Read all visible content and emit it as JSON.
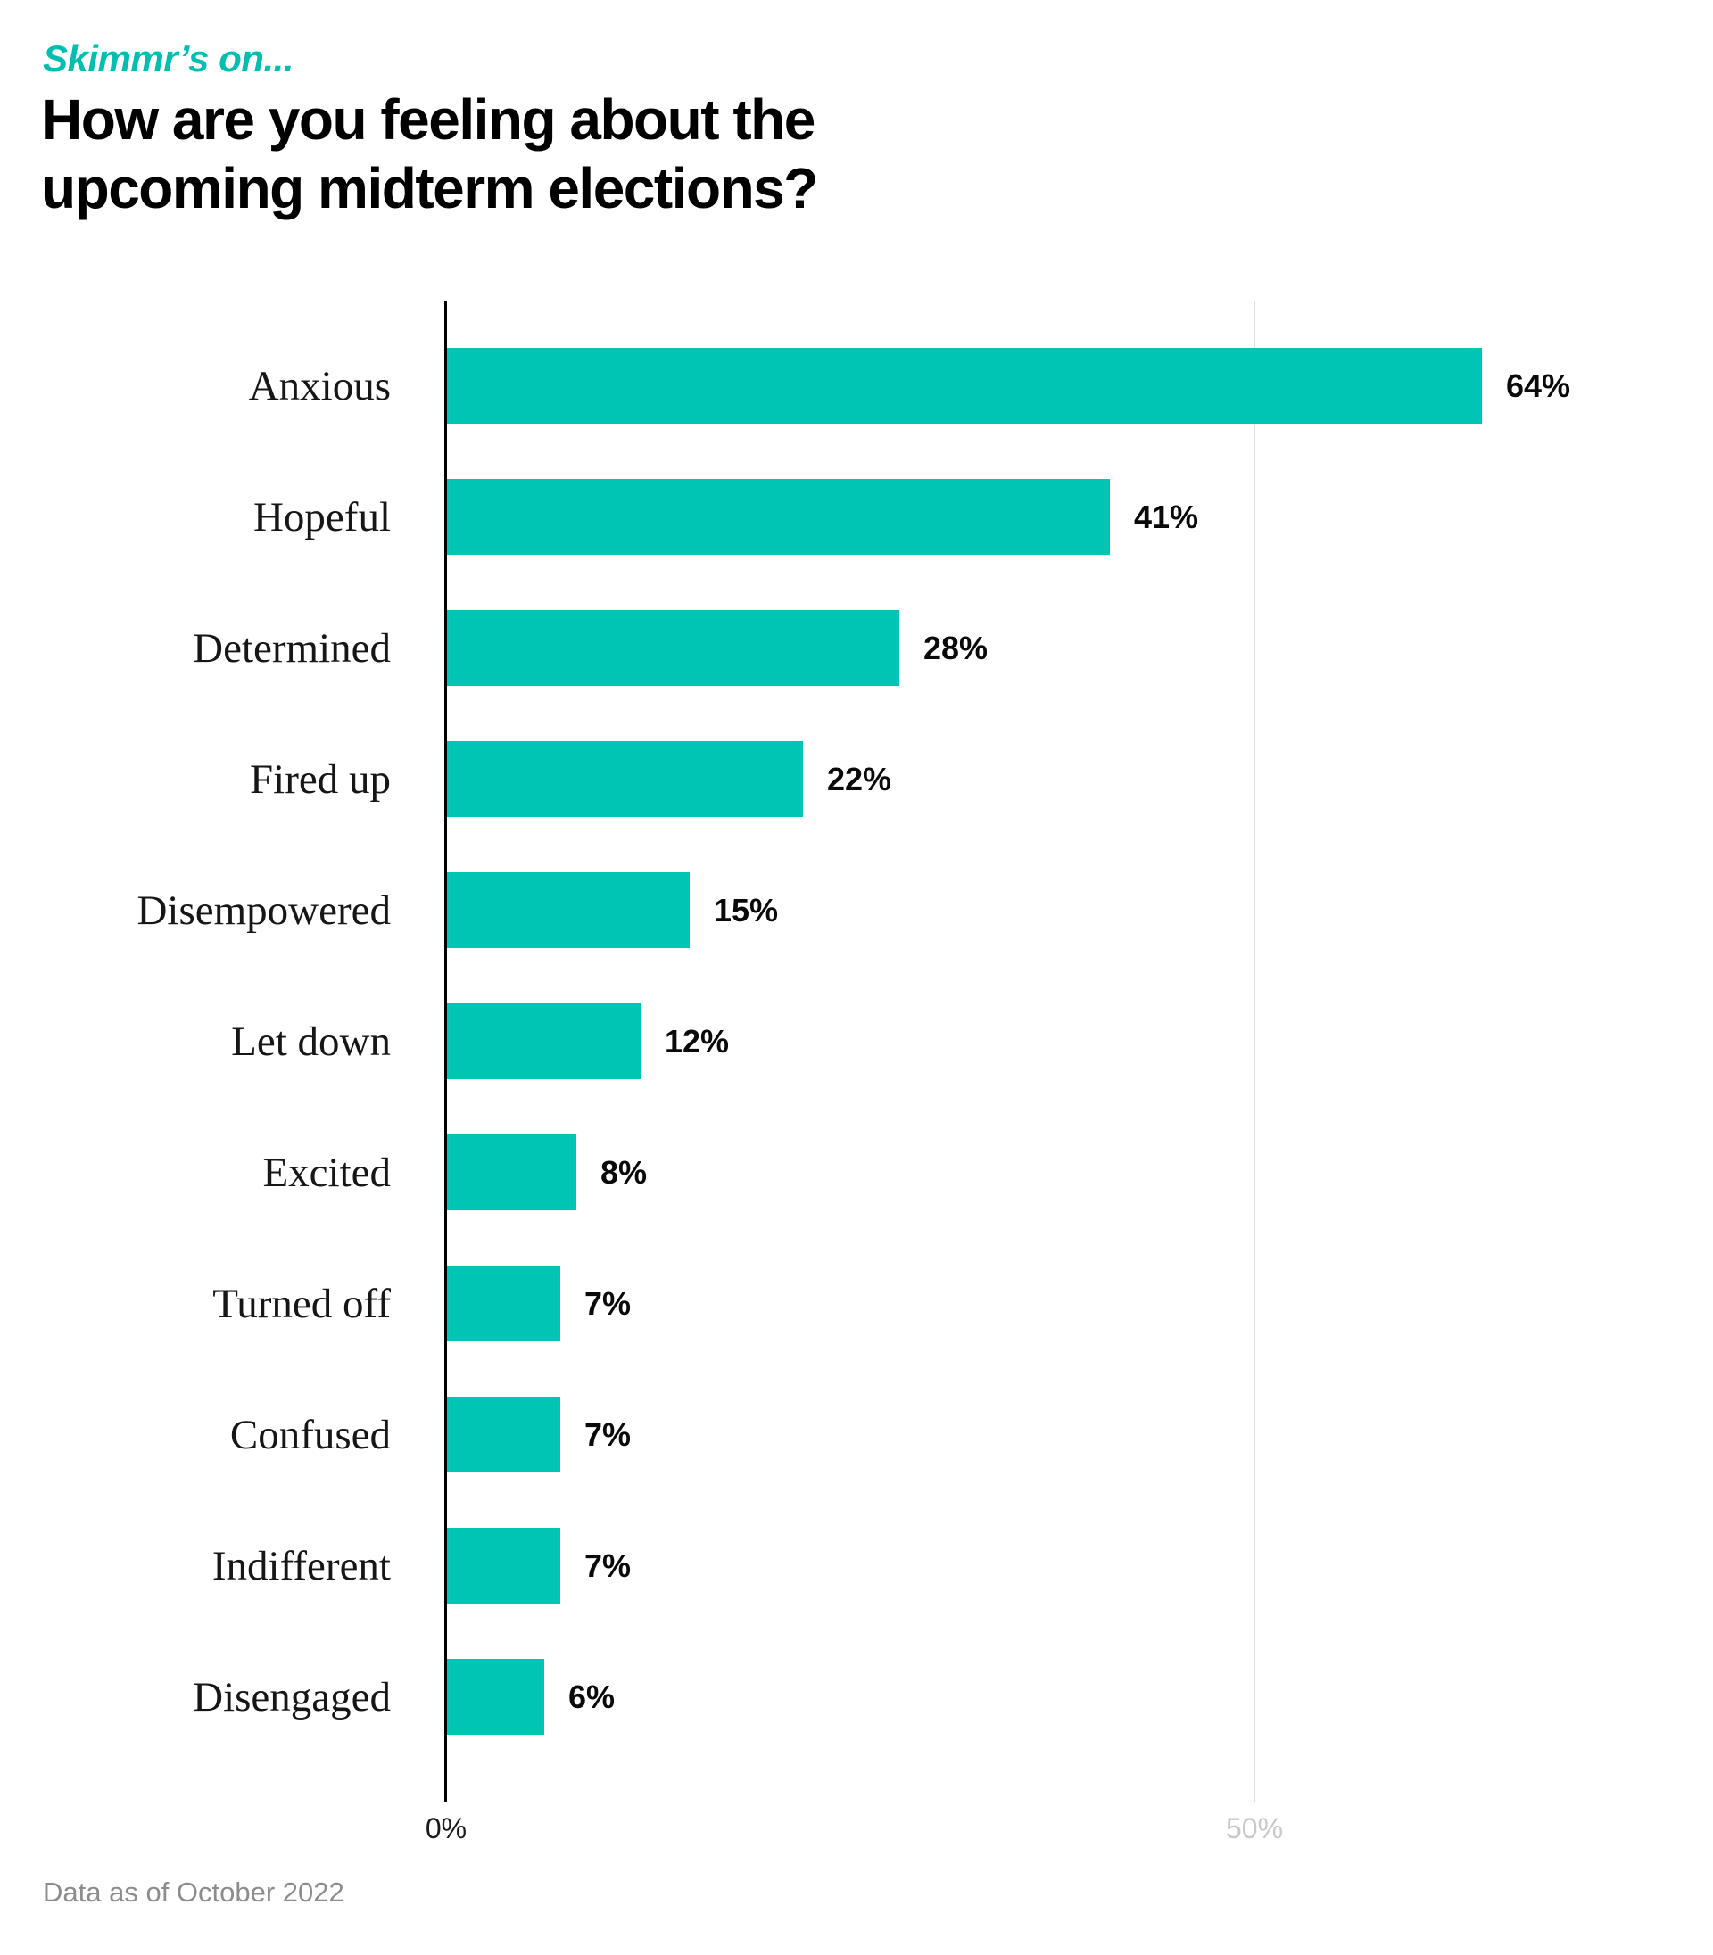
{
  "page": {
    "kicker": "Skimmr’s on...",
    "title": "How are you feeling about the upcoming midterm elections?",
    "footer": "Data as of October 2022"
  },
  "chart_data": {
    "type": "bar",
    "orientation": "horizontal",
    "title": "How are you feeling about the upcoming midterm elections?",
    "categories": [
      "Anxious",
      "Hopeful",
      "Determined",
      "Fired up",
      "Disempowered",
      "Let down",
      "Excited",
      "Turned off",
      "Confused",
      "Indifferent",
      "Disengaged"
    ],
    "values": [
      64,
      41,
      28,
      22,
      15,
      12,
      8,
      7,
      7,
      7,
      6
    ],
    "value_label_suffix": "%",
    "xlabel": "",
    "ylabel": "",
    "xlim": [
      0,
      75.6
    ],
    "x_ticks": [
      {
        "label": "0%",
        "value": 0
      },
      {
        "label": "50%",
        "value": 50
      }
    ],
    "grid": "single vertical gridline at 50%",
    "legend": "none",
    "bar_color": "#00C4B4"
  },
  "colors": {
    "accent_teal": "#00C4B4",
    "kicker_teal": "#00BFB1",
    "title_black": "#000000",
    "tick_dark": "#1a1a1a",
    "tick_muted": "#c8c8c8",
    "gridline": "#dedede",
    "axis": "#000000",
    "footer_gray": "#8c8c8c"
  }
}
